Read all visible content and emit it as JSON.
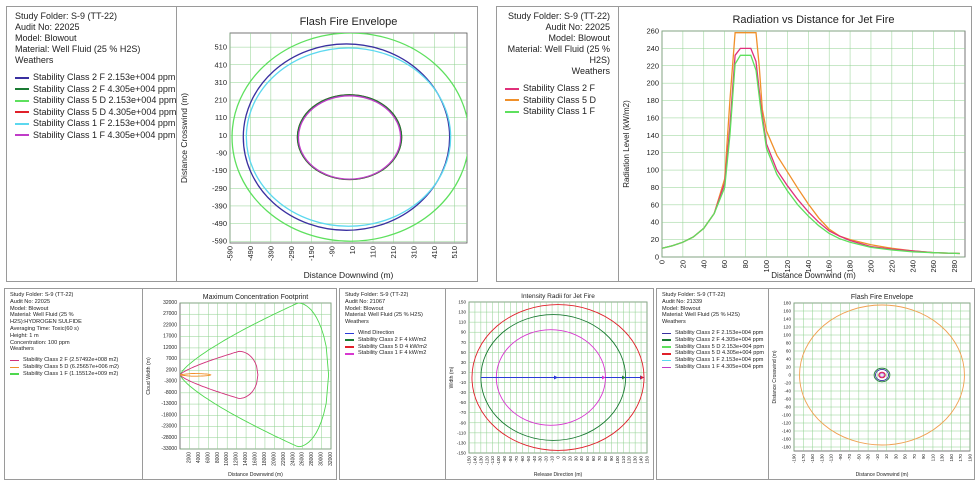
{
  "panels": [
    {
      "info_lines": [
        "Study Folder: S-9 (TT-22)",
        "Audit No: 22025",
        "Model: Blowout",
        "Material: Well Fluid (25 % H2S)",
        "Weathers"
      ],
      "info_align": "left",
      "legend": [
        {
          "label": "Stability Class 2 F 2.153e+004 ppm",
          "color": "#3a30a0"
        },
        {
          "label": "Stability Class 2 F 4.305e+004 ppm",
          "color": "#1a7a33"
        },
        {
          "label": "Stability Class 5 D 2.153e+004 ppm",
          "color": "#5ee05e"
        },
        {
          "label": "Stability Class 5 D 4.305e+004 ppm",
          "color": "#e0202a"
        },
        {
          "label": "Stability Class 1 F 2.153e+004 ppm",
          "color": "#5cd8ef"
        },
        {
          "label": "Stability Class 1 F 4.305e+004 ppm",
          "color": "#c03cc8"
        }
      ]
    },
    {
      "info_lines": [
        "Study Folder: S-9 (TT-22)",
        "Audit No: 22025",
        "Model: Blowout",
        "Material: Well Fluid (25 %",
        "H2S)",
        "Weathers"
      ],
      "info_align": "right",
      "legend": [
        {
          "label": "Stability Class 2 F",
          "color": "#e0307a"
        },
        {
          "label": "Stability Class 5 D",
          "color": "#f0902a"
        },
        {
          "label": "Stability Class 1 F",
          "color": "#5ee05e"
        }
      ]
    },
    {
      "info_lines": [
        "Study Folder: S-9 (TT-22)",
        "Audit No: 22025",
        "Model: Blowout",
        "Material: Well Fluid (25 %",
        "H2S):HYDROGEN SULFIDE",
        "Averaging Time: Toxic(60 s)",
        "Height: 1 m",
        "Concentration: 100 ppm",
        "Weathers"
      ],
      "info_align": "left",
      "legend": [
        {
          "label": "Stability Class 2 F (2.57492e+008 m2)",
          "color": "#d0307a"
        },
        {
          "label": "Stability Class 5 D (6.25657e+006 m2)",
          "color": "#f0902a"
        },
        {
          "label": "Stability Class 1 F (1.15512e+009 m2)",
          "color": "#4ed84e"
        }
      ]
    },
    {
      "info_lines": [
        "Study Folder: S-9 (TT-22)",
        "Audit No: 21067",
        "Model: Blowout",
        "Material: Well Fluid (25 % H2S)",
        "Weathers"
      ],
      "info_align": "left",
      "legend": [
        {
          "label": "Wind Direction",
          "color": "#2a3ad8"
        },
        {
          "label": "Stability Class 2 F 4 kW/m2",
          "color": "#1a7a33"
        },
        {
          "label": "Stability Class 5 D 4 kW/m2",
          "color": "#e0202a"
        },
        {
          "label": "Stability Class 1 F 4 kW/m2",
          "color": "#d838d0"
        }
      ]
    },
    {
      "info_lines": [
        "Study Folder: S-9 (TT-22)",
        "Audit No: 21339",
        "Model: Blowout",
        "Material: Well Fluid (25 % H2S)",
        "Weathers"
      ],
      "info_align": "left",
      "legend": [
        {
          "label": "Stability Class 2 F 2.153e+004 ppm",
          "color": "#3a30a0"
        },
        {
          "label": "Stability Class 2 F 4.305e+004 ppm",
          "color": "#1a7a33"
        },
        {
          "label": "Stability Class 5 D 2.153e+004 ppm",
          "color": "#5ee05e"
        },
        {
          "label": "Stability Class 5 D 4.305e+004 ppm",
          "color": "#e0202a"
        },
        {
          "label": "Stability Class 1 F 2.153e+004 ppm",
          "color": "#5cd8ef"
        },
        {
          "label": "Stability Class 1 F 4.305e+004 ppm",
          "color": "#c03cc8"
        }
      ]
    }
  ],
  "chart_data": [
    {
      "type": "contour",
      "title": "Flash Fire Envelope",
      "xlabel": "Distance Downwind (m)",
      "ylabel": "Distance Crosswind (m)",
      "xlim": [
        -590,
        570
      ],
      "ylim": [
        -600,
        590
      ],
      "xticks": [
        -590,
        -490,
        -390,
        -290,
        -190,
        -90,
        10,
        110,
        210,
        310,
        410,
        510
      ],
      "yticks": [
        510,
        410,
        310,
        210,
        110,
        10,
        -90,
        -190,
        -290,
        -390,
        -490,
        -590
      ],
      "series": [
        {
          "name": "Stability Class 5 D 2.153e+004 ppm",
          "color": "#5ee05e",
          "cx": 0,
          "cy": 0,
          "rx": 580,
          "ry": 590
        },
        {
          "name": "Stability Class 2 F 2.153e+004 ppm",
          "color": "#3a30a0",
          "cx": -20,
          "cy": 0,
          "rx": 505,
          "ry": 528
        },
        {
          "name": "Stability Class 1 F 2.153e+004 ppm",
          "color": "#5cd8ef",
          "cx": -10,
          "cy": 0,
          "rx": 500,
          "ry": 505
        },
        {
          "name": "Stability Class 5 D 4.305e+004 ppm",
          "color": "#e0202a",
          "cx": -5,
          "cy": 0,
          "rx": 255,
          "ry": 240
        },
        {
          "name": "Stability Class 2 F 4.305e+004 ppm",
          "color": "#1a7a33",
          "cx": -5,
          "cy": 0,
          "rx": 255,
          "ry": 240
        },
        {
          "name": "Stability Class 1 F 4.305e+004 ppm",
          "color": "#c03cc8",
          "cx": -5,
          "cy": -2,
          "rx": 250,
          "ry": 236
        }
      ]
    },
    {
      "type": "line",
      "title": "Radiation vs Distance for Jet Fire",
      "xlabel": "Distance Downwind (m)",
      "ylabel": "Radiation Level (kW/m2)",
      "xlim": [
        0,
        290
      ],
      "ylim": [
        0,
        260
      ],
      "xticks": [
        0,
        20,
        40,
        60,
        80,
        100,
        120,
        140,
        160,
        180,
        200,
        220,
        240,
        260,
        280
      ],
      "yticks": [
        0,
        20,
        40,
        60,
        80,
        100,
        120,
        140,
        160,
        180,
        200,
        220,
        240,
        260
      ],
      "series": [
        {
          "name": "Stability Class 5 D",
          "color": "#f0902a",
          "x": [
            0,
            10,
            20,
            30,
            40,
            50,
            60,
            65,
            70,
            80,
            90,
            93,
            96,
            100,
            110,
            120,
            130,
            140,
            150,
            160,
            170,
            180,
            200,
            220,
            240,
            260,
            285
          ],
          "y": [
            10,
            13,
            17,
            23,
            33,
            50,
            90,
            180,
            258,
            258,
            258,
            220,
            170,
            145,
            117,
            98,
            79,
            61,
            45,
            32,
            24,
            20,
            14,
            10,
            7,
            5,
            4
          ]
        },
        {
          "name": "Stability Class 2 F",
          "color": "#e0307a",
          "x": [
            0,
            10,
            20,
            30,
            40,
            50,
            60,
            65,
            70,
            75,
            80,
            85,
            90,
            95,
            100,
            110,
            120,
            130,
            140,
            150,
            160,
            170,
            180,
            200,
            220,
            240,
            260,
            285
          ],
          "y": [
            10,
            13,
            17,
            23,
            33,
            50,
            85,
            150,
            232,
            240,
            240,
            240,
            225,
            170,
            130,
            100,
            82,
            66,
            52,
            40,
            30,
            24,
            19,
            12,
            9,
            7,
            5,
            4
          ]
        },
        {
          "name": "Stability Class 1 F",
          "color": "#5ee05e",
          "x": [
            0,
            10,
            20,
            30,
            40,
            50,
            60,
            65,
            70,
            75,
            80,
            85,
            90,
            95,
            100,
            110,
            120,
            130,
            140,
            150,
            160,
            170,
            180,
            200,
            220,
            240,
            260,
            285
          ],
          "y": [
            10,
            13,
            17,
            23,
            33,
            50,
            80,
            140,
            222,
            232,
            232,
            232,
            215,
            165,
            125,
            95,
            76,
            60,
            47,
            36,
            27,
            21,
            17,
            11,
            8,
            6,
            5,
            4
          ]
        }
      ]
    },
    {
      "type": "contour",
      "title": "Maximum Concentration Footprint",
      "xlabel": "Distance Downwind (m)",
      "ylabel": "Cloud Width (m)",
      "xlim": [
        0,
        32000
      ],
      "ylim": [
        -33000,
        32000
      ],
      "xticks": [
        2000,
        4000,
        6000,
        8000,
        10000,
        12000,
        14000,
        16000,
        18000,
        20000,
        22000,
        24000,
        26000,
        28000,
        30000,
        32000
      ],
      "yticks": [
        32000,
        27000,
        22000,
        17000,
        12000,
        7000,
        2000,
        -3000,
        -8000,
        -13000,
        -18000,
        -23000,
        -28000,
        -33000
      ],
      "series": [
        {
          "name": "Stability Class 1 F (1.15512e+009 m2)",
          "color": "#4ed84e",
          "max_x": 31500,
          "peak_x": 25000,
          "half_width": 32000
        },
        {
          "name": "Stability Class 2 F (2.57492e+008 m2)",
          "color": "#d0307a",
          "max_x": 16500,
          "peak_x": 12500,
          "half_width": 10500
        },
        {
          "name": "Stability Class 5 D (6.25657e+006 m2)",
          "color": "#f0902a",
          "max_x": 6500,
          "peak_x": 2500,
          "half_width": 600
        }
      ]
    },
    {
      "type": "contour",
      "title": "Intensity Radii for Jet Fire",
      "xlabel": "Release Direction (m)",
      "ylabel": "Width (m)",
      "xlim": [
        -150,
        150
      ],
      "ylim": [
        -150,
        150
      ],
      "xticks": [
        -150,
        -140,
        -130,
        -120,
        -110,
        -100,
        -90,
        -80,
        -70,
        -60,
        -50,
        -40,
        -30,
        -20,
        -10,
        0,
        10,
        20,
        30,
        40,
        50,
        60,
        70,
        80,
        90,
        100,
        110,
        120,
        130,
        140,
        150
      ],
      "yticks": [
        150,
        130,
        110,
        90,
        70,
        50,
        30,
        10,
        -10,
        -30,
        -50,
        -70,
        -90,
        -110,
        -130,
        -150
      ],
      "series": [
        {
          "name": "Stability Class 5 D 4 kW/m2",
          "color": "#e0202a",
          "cx": 0,
          "cy": 0,
          "rx": 145,
          "ry": 145
        },
        {
          "name": "Stability Class 2 F 4 kW/m2",
          "color": "#1a7a33",
          "cx": -8,
          "cy": 0,
          "rx": 122,
          "ry": 125
        },
        {
          "name": "Stability Class 1 F 4 kW/m2",
          "color": "#d838d0",
          "cx": -12,
          "cy": 0,
          "rx": 92,
          "ry": 95
        }
      ],
      "wind_direction": {
        "from": -130,
        "to": 145
      }
    },
    {
      "type": "contour",
      "title": "Flash Fire Envelope",
      "xlabel": "Distance Downwind (m)",
      "ylabel": "Distance Crosswind (m)",
      "xlim": [
        -190,
        190
      ],
      "ylim": [
        -190,
        180
      ],
      "xticks": [
        -190,
        -170,
        -150,
        -130,
        -110,
        -90,
        -70,
        -50,
        -30,
        -10,
        10,
        30,
        50,
        70,
        90,
        110,
        130,
        150,
        170,
        190
      ],
      "yticks": [
        180,
        160,
        140,
        120,
        100,
        80,
        60,
        40,
        20,
        0,
        -20,
        -40,
        -60,
        -80,
        -100,
        -120,
        -140,
        -160,
        -180
      ],
      "series": [
        {
          "name": "Stability Class 5 D 2.153e+004 ppm",
          "color": "#f0a050",
          "cx": 0,
          "cy": 0,
          "rx": 178,
          "ry": 175
        },
        {
          "name": "Stability Class 2 F 4.305e+004 ppm",
          "color": "#1a7a33",
          "cx": 0,
          "cy": 0,
          "rx": 17,
          "ry": 17
        },
        {
          "name": "Stability Class 2 F 2.153e+004 ppm",
          "color": "#3a30a0",
          "cx": 0,
          "cy": 0,
          "rx": 14,
          "ry": 14
        },
        {
          "name": "Stability Class 5 D 4.305e+004 ppm",
          "color": "#e0202a",
          "cx": 0,
          "cy": 0,
          "rx": 7,
          "ry": 7
        },
        {
          "name": "Stability Class 1 F 4.305e+004 ppm",
          "color": "#c03cc8",
          "cx": 0,
          "cy": 0,
          "rx": 5,
          "ry": 5
        }
      ]
    }
  ]
}
